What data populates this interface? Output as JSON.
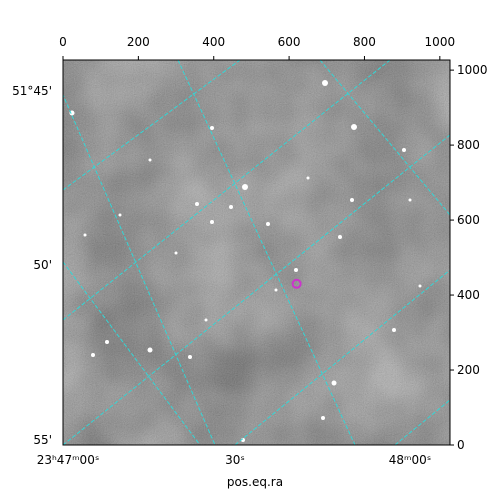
{
  "chart_data": {
    "type": "image",
    "xlabel": "pos.eq.ra",
    "xlim": [
      0,
      1027
    ],
    "ylim": [
      0,
      1027
    ],
    "xticks": [
      0,
      200,
      400,
      600,
      800,
      1000
    ],
    "yticks": [
      0,
      200,
      400,
      600,
      800,
      1000
    ],
    "world_y_labels": [
      "51°45'",
      "50'",
      "55'"
    ],
    "world_x_labels": [
      "23ʰ47ᵐ00ˢ",
      "30ˢ",
      "48ᵐ00ˢ"
    ],
    "marker": {
      "x": 620,
      "y": 430,
      "color": "#cc33cc"
    }
  }
}
